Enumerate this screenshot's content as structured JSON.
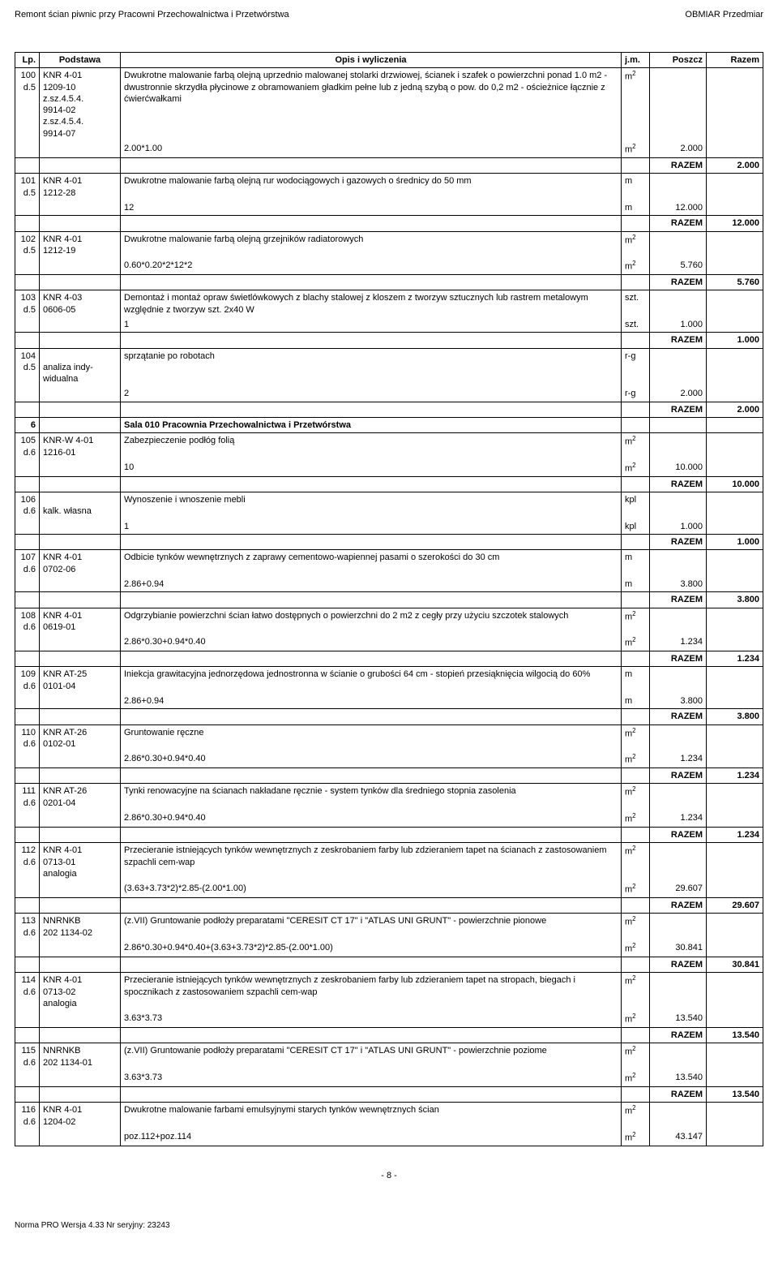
{
  "header": {
    "title_left": "Remont ścian piwnic przy Pracowni Przechowalnictwa i Przetwórstwa",
    "title_right": "OBMIAR Przedmiar"
  },
  "columns": [
    "Lp.",
    "Podstawa",
    "Opis i wyliczenia",
    "j.m.",
    "Poszcz",
    "Razem"
  ],
  "rows": [
    {
      "type": "item",
      "lp": "100\nd.5",
      "basis": "KNR 4-01\n1209-10\nz.sz.4.5.4.\n9914-02\nz.sz.4.5.4.\n9914-07",
      "desc": "Dwukrotne malowanie farbą olejną uprzednio malowanej stolarki drzwiowej, ścianek i szafek o powierzchni ponad 1.0 m2 - dwustronnie skrzydła płycinowe z obramowaniem gładkim pełne lub z jedną szybą o pow. do 0,2 m2 - ościeżnice łącznie z ćwierćwałkami",
      "jm": "m²"
    },
    {
      "type": "calc",
      "desc": "2.00*1.00",
      "jm": "m²",
      "poszcz": "2.000"
    },
    {
      "type": "razem",
      "razem": "2.000"
    },
    {
      "type": "item",
      "lp": "101\nd.5",
      "basis": "KNR 4-01\n1212-28",
      "desc": "Dwukrotne malowanie farbą olejną rur wodociągowych i gazowych o średnicy do 50 mm",
      "jm": "m"
    },
    {
      "type": "calc",
      "desc": "12",
      "jm": "m",
      "poszcz": "12.000"
    },
    {
      "type": "razem",
      "razem": "12.000"
    },
    {
      "type": "item",
      "lp": "102\nd.5",
      "basis": "KNR 4-01\n1212-19",
      "desc": "Dwukrotne malowanie farbą olejną grzejników radiatorowych",
      "jm": "m²"
    },
    {
      "type": "calc",
      "desc": "0.60*0.20*2*12*2",
      "jm": "m²",
      "poszcz": "5.760"
    },
    {
      "type": "razem",
      "razem": "5.760"
    },
    {
      "type": "item",
      "lp": "103\nd.5",
      "basis": "KNR 4-03\n0606-05",
      "desc": "Demontaż i montaż opraw świetlówkowych z blachy stalowej z kloszem z tworzyw sztucznych lub rastrem metalowym względnie z tworzyw szt. 2x40 W",
      "jm": "szt."
    },
    {
      "type": "calc",
      "desc": "1",
      "jm": "szt.",
      "poszcz": "1.000"
    },
    {
      "type": "razem",
      "razem": "1.000"
    },
    {
      "type": "item",
      "lp": "104\nd.5",
      "basis": "\nanaliza indy-\nwidualna",
      "desc": "sprzątanie po robotach",
      "jm": "r-g"
    },
    {
      "type": "calc",
      "desc": "2",
      "jm": "r-g",
      "poszcz": "2.000"
    },
    {
      "type": "razem",
      "razem": "2.000"
    },
    {
      "type": "section",
      "lp": "6",
      "desc": "Sala 010  Pracownia Przechowalnictwa i Przetwórstwa"
    },
    {
      "type": "item",
      "lp": "105\nd.6",
      "basis": "KNR-W 4-01\n1216-01",
      "desc": "Zabezpieczenie podłóg folią",
      "jm": "m²"
    },
    {
      "type": "calc",
      "desc": "10",
      "jm": "m²",
      "poszcz": "10.000"
    },
    {
      "type": "razem",
      "razem": "10.000"
    },
    {
      "type": "item",
      "lp": "106\nd.6",
      "basis": "\nkalk. własna",
      "desc": "Wynoszenie i wnoszenie mebli",
      "jm": "kpl"
    },
    {
      "type": "calc",
      "desc": "1",
      "jm": "kpl",
      "poszcz": "1.000"
    },
    {
      "type": "razem",
      "razem": "1.000"
    },
    {
      "type": "item",
      "lp": "107\nd.6",
      "basis": "KNR 4-01\n0702-06",
      "desc": "Odbicie tynków wewnętrznych z zaprawy cementowo-wapiennej pasami o szerokości do 30 cm",
      "jm": "m"
    },
    {
      "type": "calc",
      "desc": "2.86+0.94",
      "jm": "m",
      "poszcz": "3.800"
    },
    {
      "type": "razem",
      "razem": "3.800"
    },
    {
      "type": "item",
      "lp": "108\nd.6",
      "basis": "KNR 4-01\n0619-01",
      "desc": "Odgrzybianie powierzchni ścian łatwo dostępnych o powierzchni do 2 m2 z cegły przy użyciu szczotek stalowych",
      "jm": "m²"
    },
    {
      "type": "calc",
      "desc": "2.86*0.30+0.94*0.40",
      "jm": "m²",
      "poszcz": "1.234"
    },
    {
      "type": "razem",
      "razem": "1.234"
    },
    {
      "type": "item",
      "lp": "109\nd.6",
      "basis": "KNR AT-25\n0101-04",
      "desc": "Iniekcja grawitacyjna jednorzędowa jednostronna w ścianie o grubości 64 cm - stopień przesiąknięcia wilgocią do 60%",
      "jm": "m"
    },
    {
      "type": "calc",
      "desc": "2.86+0.94",
      "jm": "m",
      "poszcz": "3.800"
    },
    {
      "type": "razem",
      "razem": "3.800"
    },
    {
      "type": "item",
      "lp": "110\nd.6",
      "basis": "KNR AT-26\n0102-01",
      "desc": "Gruntowanie ręczne",
      "jm": "m²"
    },
    {
      "type": "calc",
      "desc": "2.86*0.30+0.94*0.40",
      "jm": "m²",
      "poszcz": "1.234"
    },
    {
      "type": "razem",
      "razem": "1.234"
    },
    {
      "type": "item",
      "lp": "111\nd.6",
      "basis": "KNR AT-26\n0201-04",
      "desc": "Tynki renowacyjne na ścianach nakładane ręcznie - system tynków dla średniego stopnia zasolenia",
      "jm": "m²"
    },
    {
      "type": "calc",
      "desc": "2.86*0.30+0.94*0.40",
      "jm": "m²",
      "poszcz": "1.234"
    },
    {
      "type": "razem",
      "razem": "1.234"
    },
    {
      "type": "item",
      "lp": "112\nd.6",
      "basis": "KNR 4-01\n0713-01\nanalogia",
      "desc": "Przecieranie istniejących tynków wewnętrznych z zeskrobaniem farby lub zdzieraniem tapet na ścianach z zastosowaniem szpachli cem-wap",
      "jm": "m²"
    },
    {
      "type": "calc",
      "desc": "(3.63+3.73*2)*2.85-(2.00*1.00)",
      "jm": "m²",
      "poszcz": "29.607"
    },
    {
      "type": "razem",
      "razem": "29.607"
    },
    {
      "type": "item",
      "lp": "113\nd.6",
      "basis": "NNRNKB\n202 1134-02",
      "desc": "(z.VII) Gruntowanie podłoży preparatami \"CERESIT CT 17\" i \"ATLAS UNI GRUNT\" - powierzchnie pionowe",
      "jm": "m²"
    },
    {
      "type": "calc",
      "desc": "2.86*0.30+0.94*0.40+(3.63+3.73*2)*2.85-(2.00*1.00)",
      "jm": "m²",
      "poszcz": "30.841"
    },
    {
      "type": "razem",
      "razem": "30.841"
    },
    {
      "type": "item",
      "lp": "114\nd.6",
      "basis": "KNR 4-01\n0713-02\nanalogia",
      "desc": "Przecieranie istniejących tynków wewnętrznych z zeskrobaniem farby lub zdzieraniem tapet na stropach, biegach i spocznikach z zastosowaniem szpachli cem-wap",
      "jm": "m²"
    },
    {
      "type": "calc",
      "desc": "3.63*3.73",
      "jm": "m²",
      "poszcz": "13.540"
    },
    {
      "type": "razem",
      "razem": "13.540"
    },
    {
      "type": "item",
      "lp": "115\nd.6",
      "basis": "NNRNKB\n202 1134-01",
      "desc": "(z.VII) Gruntowanie podłoży preparatami \"CERESIT CT 17\" i \"ATLAS UNI GRUNT\" - powierzchnie poziome",
      "jm": "m²"
    },
    {
      "type": "calc",
      "desc": "3.63*3.73",
      "jm": "m²",
      "poszcz": "13.540"
    },
    {
      "type": "razem",
      "razem": "13.540"
    },
    {
      "type": "item",
      "lp": "116\nd.6",
      "basis": "KNR 4-01\n1204-02",
      "desc": "Dwukrotne malowanie farbami emulsyjnymi starych tynków wewnętrznych ścian",
      "jm": "m²"
    },
    {
      "type": "calc",
      "desc": "poz.112+poz.114",
      "jm": "m²",
      "poszcz": "43.147"
    }
  ],
  "razem_label": "RAZEM",
  "footer": {
    "page": "- 8 -",
    "note": "Norma PRO Wersja 4.33 Nr seryjny: 23243"
  }
}
